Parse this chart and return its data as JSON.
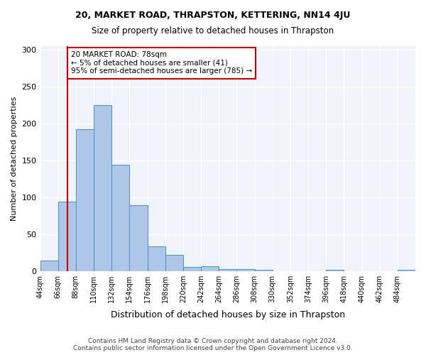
{
  "title1": "20, MARKET ROAD, THRAPSTON, KETTERING, NN14 4JU",
  "title2": "Size of property relative to detached houses in Thrapston",
  "xlabel": "Distribution of detached houses by size in Thrapston",
  "ylabel": "Number of detached properties",
  "bin_edges": [
    44,
    66,
    88,
    110,
    132,
    154,
    176,
    198,
    220,
    242,
    264,
    286,
    308,
    330,
    352,
    374,
    396,
    418,
    440,
    462,
    484,
    506
  ],
  "bar_heights": [
    14,
    94,
    192,
    225,
    144,
    89,
    33,
    22,
    5,
    6,
    3,
    3,
    2,
    0,
    0,
    0,
    2,
    0,
    0,
    0,
    2
  ],
  "bar_color": "#aec6e8",
  "bar_edge_color": "#4a90c4",
  "property_size": 78,
  "red_line_color": "#cc0000",
  "annotation_text": "20 MARKET ROAD: 78sqm\n← 5% of detached houses are smaller (41)\n95% of semi-detached houses are larger (785) →",
  "annotation_box_color": "#ffffff",
  "annotation_box_edge": "#cc0000",
  "ylim": [
    0,
    305
  ],
  "yticks": [
    0,
    50,
    100,
    150,
    200,
    250,
    300
  ],
  "background_color": "#f0f4fa",
  "footer": "Contains HM Land Registry data © Crown copyright and database right 2024.\nContains public sector information licensed under the Open Government Licence v3.0.",
  "tick_labels": [
    "44sqm",
    "66sqm",
    "88sqm",
    "110sqm",
    "132sqm",
    "154sqm",
    "176sqm",
    "198sqm",
    "220sqm",
    "242sqm",
    "264sqm",
    "286sqm",
    "308sqm",
    "330sqm",
    "352sqm",
    "374sqm",
    "396sqm",
    "418sqm",
    "440sqm",
    "462sqm",
    "484sqm"
  ]
}
